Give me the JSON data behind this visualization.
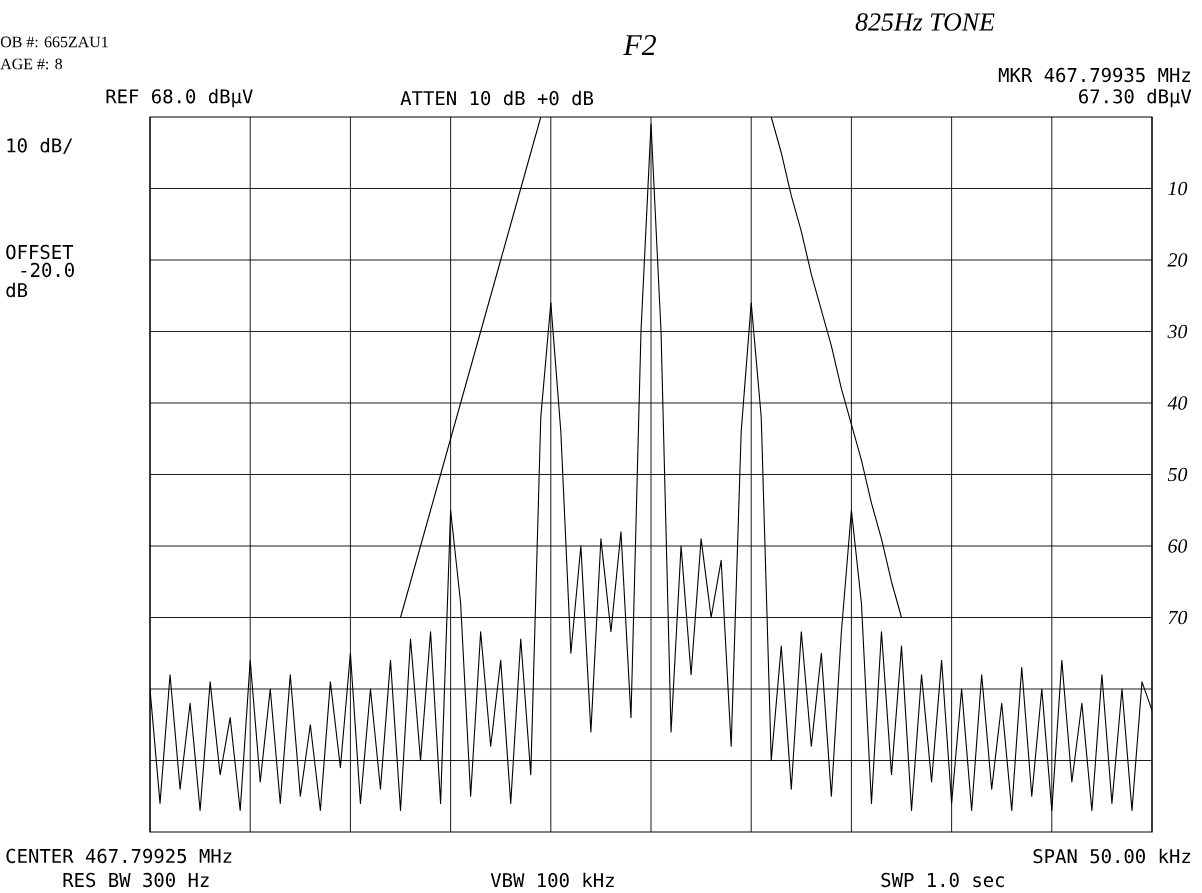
{
  "chart_data": {
    "type": "line",
    "title": "F2",
    "subtitle": "825Hz TONE",
    "categories": [
      null,
      null,
      null,
      null,
      null,
      null,
      null,
      null,
      null,
      null,
      null,
      null,
      null,
      null,
      null,
      null,
      null,
      null,
      null,
      null,
      null,
      null,
      null,
      null,
      null,
      null,
      null,
      null,
      null,
      null,
      null,
      null,
      null,
      null,
      null,
      null,
      null,
      null,
      null,
      null,
      null,
      null,
      null,
      null,
      null,
      null,
      null,
      null,
      null,
      null,
      null,
      null,
      null,
      null,
      null,
      null,
      null,
      null,
      null,
      null,
      null,
      null,
      null,
      null,
      null,
      null,
      null,
      null,
      null,
      null,
      null,
      null,
      null,
      null,
      null,
      null,
      null,
      null,
      null,
      null,
      null,
      null,
      null,
      null,
      null,
      null,
      null,
      null,
      null,
      null,
      null,
      null,
      null,
      null,
      null,
      null,
      null,
      null,
      null,
      null,
      null
    ],
    "series": [
      {
        "color": "#000000",
        "values": [
          80,
          96,
          78,
          94,
          82,
          97,
          79,
          92,
          84,
          97,
          76,
          93,
          80,
          96,
          78,
          95,
          85,
          97,
          79,
          91,
          75,
          96,
          80,
          94,
          76,
          97,
          73,
          90,
          72,
          96,
          55,
          68,
          95,
          72,
          88,
          76,
          96,
          73,
          92,
          42,
          26,
          44,
          75,
          60,
          86,
          59,
          72,
          58,
          84,
          30,
          1,
          30,
          86,
          60,
          78,
          59,
          70,
          62,
          88,
          44,
          26,
          42,
          90,
          74,
          94,
          72,
          88,
          75,
          95,
          72,
          55,
          68,
          96,
          72,
          92,
          74,
          97,
          78,
          93,
          76,
          96,
          80,
          97,
          78,
          94,
          82,
          97,
          77,
          95,
          80,
          97,
          76,
          93,
          82,
          97,
          78,
          96,
          80,
          97,
          79,
          83
        ]
      },
      {
        "color": "#000000",
        "values": [
          null,
          null,
          null,
          null,
          null,
          null,
          null,
          null,
          null,
          null,
          null,
          null,
          null,
          null,
          null,
          null,
          null,
          null,
          null,
          null,
          null,
          null,
          null,
          null,
          null,
          70,
          65,
          60,
          55,
          50,
          45,
          40,
          35,
          30,
          25,
          20,
          15,
          10,
          5,
          0,
          null,
          null,
          null,
          null,
          null,
          null,
          null,
          null,
          null,
          null,
          null,
          null,
          null,
          null,
          null,
          null,
          null,
          null,
          null,
          null,
          null,
          null,
          null,
          null,
          null,
          null,
          null,
          null,
          null,
          null,
          null,
          null,
          null,
          null,
          null,
          null,
          null,
          null,
          null,
          null,
          null,
          null,
          null,
          null,
          null,
          null,
          null,
          null,
          null,
          null,
          null,
          null,
          null,
          null,
          null,
          null,
          null,
          null,
          null,
          null,
          null
        ]
      },
      {
        "color": "#000000",
        "values": [
          null,
          null,
          null,
          null,
          null,
          null,
          null,
          null,
          null,
          null,
          null,
          null,
          null,
          null,
          null,
          null,
          null,
          null,
          null,
          null,
          null,
          null,
          null,
          null,
          null,
          null,
          null,
          null,
          null,
          null,
          null,
          null,
          null,
          null,
          null,
          null,
          null,
          null,
          null,
          null,
          null,
          null,
          null,
          null,
          null,
          null,
          null,
          null,
          null,
          null,
          null,
          null,
          null,
          null,
          null,
          null,
          null,
          null,
          null,
          null,
          null,
          null,
          0,
          5,
          11,
          16,
          22,
          27,
          32,
          38,
          43,
          48,
          54,
          59,
          65,
          70,
          null,
          null,
          null,
          null,
          null,
          null,
          null,
          null,
          null,
          null,
          null,
          null,
          null,
          null,
          null,
          null,
          null,
          null,
          null,
          null,
          null,
          null,
          null,
          null,
          null
        ]
      }
    ],
    "ylim": [
      100,
      0
    ],
    "yticks": [
      10,
      20,
      30,
      40,
      50,
      60,
      70,
      {
        "value": 80,
        "label": null
      },
      {
        "value": 90,
        "label": null
      }
    ],
    "tick_labels": "y",
    "grid": true,
    "marker": "none",
    "line_style": "solid",
    "annotations": [
      "OB #: 665ZAU1",
      "AGE #: 8",
      "REF 68.0 dBµV",
      "ATTEN 10 dB +0 dB",
      "MKR 467.79935 MHz",
      "67.30 dBµV",
      "10 dB/",
      "OFFSET",
      "-20.0",
      "dB",
      "CENTER 467.79925 MHz",
      "SPAN 50.00 kHz",
      "RES BW 300 Hz",
      "VBW 100 kHz",
      "SWP 1.0 sec"
    ]
  }
}
